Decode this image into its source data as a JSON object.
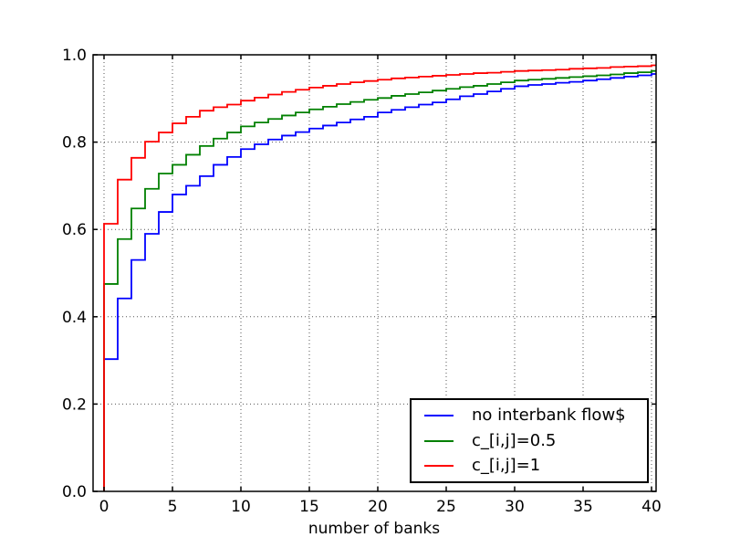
{
  "figure": {
    "background": "#ffffff"
  },
  "chart_data": {
    "type": "line",
    "subtype": "step-cdf",
    "title": "",
    "xlabel": "number of banks",
    "ylabel": "",
    "xlim": [
      -0.8,
      40.4
    ],
    "ylim": [
      0.0,
      1.0
    ],
    "grid": true,
    "grid_style": "dotted",
    "legend_position": "lower right",
    "x_ticks": [
      0,
      5,
      10,
      15,
      20,
      25,
      30,
      35,
      40
    ],
    "x_tick_labels": [
      "0",
      "5",
      "10",
      "15",
      "20",
      "25",
      "30",
      "35",
      "40"
    ],
    "y_ticks": [
      0.0,
      0.2,
      0.4,
      0.6,
      0.8,
      1.0
    ],
    "y_tick_labels": [
      "0.0",
      "0.2",
      "0.4",
      "0.6",
      "0.8",
      "1.0"
    ],
    "x": [
      0,
      1,
      2,
      3,
      4,
      5,
      6,
      7,
      8,
      9,
      10,
      11,
      12,
      13,
      14,
      15,
      16,
      17,
      18,
      19,
      20,
      21,
      22,
      23,
      24,
      25,
      26,
      27,
      28,
      29,
      30,
      31,
      32,
      33,
      34,
      35,
      36,
      37,
      38,
      39,
      40
    ],
    "series": [
      {
        "name": "no interbank flow$",
        "color": "#0000ff",
        "values": [
          0.303,
          0.442,
          0.53,
          0.59,
          0.64,
          0.68,
          0.7,
          0.722,
          0.748,
          0.766,
          0.784,
          0.795,
          0.806,
          0.815,
          0.823,
          0.831,
          0.838,
          0.845,
          0.852,
          0.858,
          0.868,
          0.874,
          0.88,
          0.886,
          0.891,
          0.898,
          0.905,
          0.91,
          0.916,
          0.922,
          0.928,
          0.931,
          0.933,
          0.936,
          0.938,
          0.941,
          0.944,
          0.947,
          0.95,
          0.953,
          0.956
        ]
      },
      {
        "name": "c_[i,j]=0.5",
        "color": "#008000",
        "values": [
          0.475,
          0.578,
          0.648,
          0.693,
          0.728,
          0.748,
          0.771,
          0.791,
          0.808,
          0.822,
          0.836,
          0.845,
          0.853,
          0.861,
          0.868,
          0.875,
          0.881,
          0.887,
          0.892,
          0.897,
          0.901,
          0.906,
          0.91,
          0.914,
          0.918,
          0.922,
          0.926,
          0.929,
          0.933,
          0.937,
          0.941,
          0.943,
          0.945,
          0.947,
          0.949,
          0.951,
          0.953,
          0.955,
          0.958,
          0.96,
          0.963
        ]
      },
      {
        "name": "c_[i,j]=1",
        "color": "#ff0000",
        "values": [
          0.613,
          0.714,
          0.764,
          0.801,
          0.822,
          0.843,
          0.858,
          0.872,
          0.88,
          0.886,
          0.895,
          0.902,
          0.909,
          0.915,
          0.92,
          0.925,
          0.929,
          0.933,
          0.937,
          0.94,
          0.943,
          0.946,
          0.948,
          0.95,
          0.952,
          0.954,
          0.956,
          0.958,
          0.959,
          0.961,
          0.963,
          0.964,
          0.965,
          0.966,
          0.968,
          0.969,
          0.97,
          0.972,
          0.973,
          0.974,
          0.976
        ]
      }
    ]
  },
  "style": {
    "grid_color": "#555555",
    "spine_color": "#000000",
    "tick_color": "#000000"
  }
}
